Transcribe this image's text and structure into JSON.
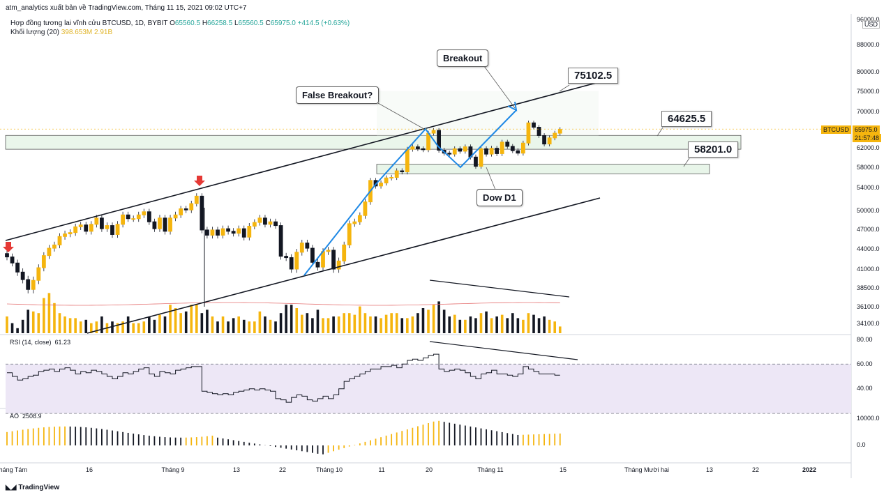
{
  "header": {
    "publisher": "atm_analytics xuất bản về TradingView.com, Tháng 11 15, 2021 09:02 UTC+7",
    "symbol": "Hợp đồng tương lai vĩnh cửu BTCUSD, 1D, BYBIT",
    "open_lbl": "O",
    "open": "65560.5",
    "high_lbl": "H",
    "high": "66258.5",
    "low_lbl": "L",
    "low": "65560.5",
    "close_lbl": "C",
    "close": "65975.0",
    "change": "+414.5 (+0.63%)",
    "volume_label": "Khối lượng (20)",
    "volume_v1": "398.653M",
    "volume_v2": "2.91B"
  },
  "currency": "USD",
  "price_tag": {
    "symbol": "BTCUSD",
    "price": "65975.0",
    "countdown": "21:57:48",
    "color": "#f5b50e"
  },
  "annotations": {
    "breakout": "Breakout",
    "false_breakout": "False Breakout?",
    "dow": "Dow D1",
    "level_top": "75102.5",
    "level_mid": "64625.5",
    "level_low": "58201.0"
  },
  "rsi": {
    "label": "RSI (14, close)",
    "value": "61.23",
    "ticks": [
      "80.00",
      "60.00",
      "40.00"
    ]
  },
  "ao": {
    "label": "AO",
    "value": "2508.9",
    "ticks": [
      "10000.0",
      "0.0"
    ]
  },
  "footer": {
    "brand": "TradingView"
  },
  "colors": {
    "up": "#f5b50e",
    "down": "#131722",
    "trend": "#1e88e5",
    "rsi_bg": "#ede7f6",
    "rsi_line": "#131722",
    "zone_fill": "#e8f5e9"
  },
  "chart_data": {
    "type": "candlestick",
    "price_ticks": [
      96000,
      88000,
      80000,
      75000,
      70000,
      66000,
      62000,
      58000,
      54000,
      50000,
      47000,
      44000,
      41000,
      38500,
      36100,
      34100
    ],
    "price_tick_labels": [
      "96000.0",
      "88000.0",
      "80000.0",
      "75000.0",
      "70000.0",
      "66000.0",
      "62000.0",
      "58000.0",
      "54000.0",
      "50000.0",
      "47000.0",
      "44000.0",
      "41000.0",
      "38500.0",
      "36100.0",
      "34100.0"
    ],
    "x_labels": [
      "Tháng Tám",
      "16",
      "Tháng 9",
      "13",
      "22",
      "Tháng 10",
      "11",
      "20",
      "Tháng 11",
      "15",
      "Tháng Mười hai",
      "13",
      "22",
      "2022"
    ],
    "levels": [
      64625.5,
      58201.0,
      75102.5
    ],
    "closes": [
      42800,
      41900,
      40600,
      39600,
      38300,
      39500,
      41200,
      43000,
      44100,
      44600,
      45900,
      46300,
      46500,
      47400,
      47700,
      46700,
      47800,
      48800,
      47100,
      47600,
      46200,
      47800,
      49300,
      48700,
      48700,
      49300,
      49800,
      48200,
      47100,
      48800,
      46700,
      48800,
      49300,
      50300,
      50100,
      51200,
      52500,
      46900,
      46100,
      46900,
      46100,
      47100,
      46700,
      46400,
      47100,
      45800,
      47500,
      48100,
      48800,
      47800,
      48200,
      47600,
      42900,
      42700,
      41000,
      43500,
      44900,
      44100,
      42000,
      41300,
      43600,
      43800,
      41000,
      42200,
      44600,
      47900,
      48200,
      49200,
      51500,
      55400,
      54300,
      54900,
      55900,
      56000,
      57300,
      57100,
      61700,
      62200,
      61800,
      61600,
      65100,
      65700,
      61500,
      60900,
      60700,
      61800,
      61300,
      62200,
      60100,
      58200,
      61800,
      60700,
      61900,
      60800,
      63200,
      62300,
      61400,
      60900,
      63000,
      67400,
      66400,
      64600,
      62800,
      64100,
      65100,
      65900
    ],
    "rsi_values": [
      63,
      60,
      57,
      58,
      60,
      61,
      64,
      65,
      66,
      64,
      66,
      67,
      65,
      62,
      64,
      63,
      65,
      64,
      62,
      60,
      58,
      60,
      63,
      62,
      64,
      66,
      67,
      62,
      60,
      64,
      63,
      62,
      65,
      66,
      67,
      68,
      68,
      48,
      47,
      46,
      45,
      46,
      45,
      47,
      48,
      49,
      50,
      49,
      50,
      49,
      48,
      42,
      41,
      39,
      43,
      45,
      44,
      41,
      40,
      42,
      44,
      42,
      45,
      50,
      56,
      58,
      60,
      62,
      64,
      66,
      66,
      68,
      68,
      69,
      67,
      70,
      73,
      74,
      73,
      75,
      77,
      78,
      66,
      64,
      65,
      66,
      65,
      63,
      60,
      58,
      62,
      63,
      65,
      62,
      62,
      61,
      60,
      62,
      68,
      66,
      64,
      62,
      62,
      62,
      61,
      61
    ]
  }
}
